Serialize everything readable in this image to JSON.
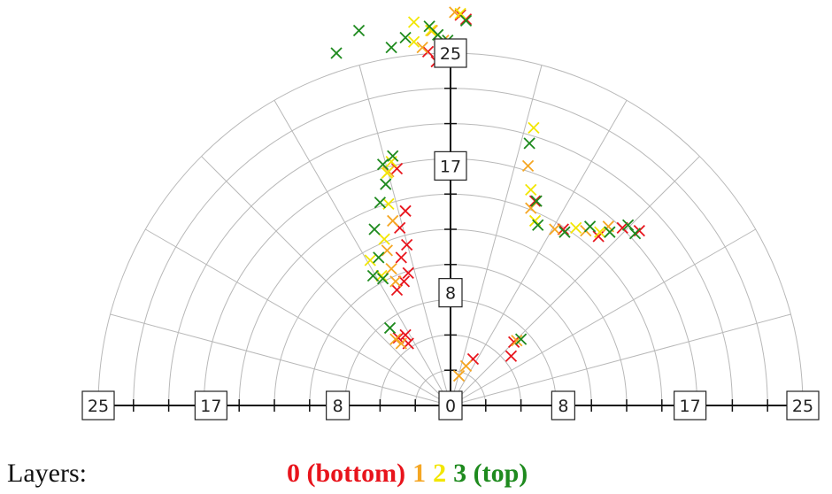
{
  "chart_data": {
    "type": "scatter",
    "coordinate_system": "polar-upper-half",
    "marker": "x",
    "radial_range": [
      0,
      25
    ],
    "radial_tick_labels": [
      "0",
      "8",
      "17",
      "25"
    ],
    "radial_ticks": [
      0,
      8,
      17,
      25
    ],
    "radial_minor_step": 2.5,
    "grid_rings": [
      2.5,
      5,
      7.5,
      10,
      12.5,
      15,
      17.5,
      20,
      22.5,
      25
    ],
    "grid_spokes_deg": [
      0,
      15,
      30,
      45,
      60,
      75,
      90,
      105,
      120,
      135,
      150,
      165,
      180
    ],
    "grid": true,
    "legend_placement": "bottom",
    "legend": {
      "title": "Layers:",
      "entries": [
        {
          "label": "0 (bottom)",
          "color": "#e8141c"
        },
        {
          "label": "1",
          "color": "#f5a623"
        },
        {
          "label": "2",
          "color": "#f2e600"
        },
        {
          "label": "3 (top)",
          "color": "#1e8a1e"
        }
      ]
    },
    "series": [
      {
        "layer": 0,
        "color": "#e8141c",
        "points": [
          [
            1.6,
            3.3
          ],
          [
            4.3,
            3.5
          ],
          [
            4.5,
            4.5
          ],
          [
            -3.7,
            4.8
          ],
          [
            -3.2,
            5.0
          ],
          [
            -3.0,
            4.4
          ],
          [
            -3.8,
            8.2
          ],
          [
            -3.3,
            8.8
          ],
          [
            -3.0,
            9.4
          ],
          [
            -3.5,
            10.5
          ],
          [
            -3.1,
            11.4
          ],
          [
            -3.6,
            12.6
          ],
          [
            -3.2,
            13.8
          ],
          [
            -3.8,
            16.8
          ],
          [
            -1.6,
            25.1
          ],
          [
            -1.0,
            24.4
          ],
          [
            0.7,
            27.7
          ],
          [
            1.1,
            27.4
          ],
          [
            6.0,
            14.5
          ],
          [
            8.0,
            12.5
          ],
          [
            10.5,
            12.0
          ],
          [
            12.2,
            12.6
          ],
          [
            13.4,
            12.4
          ]
        ]
      },
      {
        "layer": 1,
        "color": "#f5a623",
        "points": [
          [
            0.6,
            2.1
          ],
          [
            1.1,
            2.8
          ],
          [
            4.7,
            4.6
          ],
          [
            -3.9,
            4.7
          ],
          [
            -3.5,
            4.4
          ],
          [
            -3.9,
            8.8
          ],
          [
            -4.2,
            9.7
          ],
          [
            -4.5,
            11.0
          ],
          [
            -4.1,
            13.1
          ],
          [
            -4.4,
            16.6
          ],
          [
            -2.0,
            25.4
          ],
          [
            -1.3,
            26.6
          ],
          [
            -0.5,
            25.9
          ],
          [
            0.3,
            27.9
          ],
          [
            5.7,
            14.0
          ],
          [
            5.5,
            17.0
          ],
          [
            7.4,
            12.5
          ],
          [
            9.6,
            12.4
          ],
          [
            11.2,
            12.7
          ]
        ]
      },
      {
        "layer": 2,
        "color": "#f2e600",
        "points": [
          [
            -4.9,
            9.2
          ],
          [
            -5.7,
            10.3
          ],
          [
            -4.7,
            11.8
          ],
          [
            -4.4,
            14.3
          ],
          [
            -4.5,
            16.5
          ],
          [
            -4.2,
            17.3
          ],
          [
            -2.6,
            25.8
          ],
          [
            -1.4,
            26.6
          ],
          [
            -2.6,
            27.2
          ],
          [
            0.7,
            27.8
          ],
          [
            5.7,
            15.3
          ],
          [
            6.0,
            13.1
          ],
          [
            8.9,
            12.6
          ],
          [
            10.6,
            12.3
          ],
          [
            5.9,
            19.7
          ]
        ]
      },
      {
        "layer": 3,
        "color": "#1e8a1e",
        "points": [
          [
            5.0,
            4.7
          ],
          [
            -4.3,
            5.5
          ],
          [
            -5.5,
            9.2
          ],
          [
            -4.8,
            9.0
          ],
          [
            -5.1,
            10.5
          ],
          [
            -5.4,
            12.5
          ],
          [
            -5.0,
            14.4
          ],
          [
            -4.6,
            15.7
          ],
          [
            -4.8,
            17.1
          ],
          [
            -4.1,
            17.7
          ],
          [
            -8.1,
            25.0
          ],
          [
            -6.5,
            26.6
          ],
          [
            -4.2,
            25.4
          ],
          [
            -3.2,
            26.1
          ],
          [
            -1.5,
            26.9
          ],
          [
            -0.9,
            26.3
          ],
          [
            -0.2,
            25.9
          ],
          [
            1.1,
            27.3
          ],
          [
            6.1,
            14.5
          ],
          [
            5.6,
            18.6
          ],
          [
            6.2,
            12.8
          ],
          [
            8.1,
            12.3
          ],
          [
            9.9,
            12.7
          ],
          [
            11.3,
            12.3
          ],
          [
            12.6,
            12.8
          ],
          [
            13.1,
            12.2
          ]
        ]
      }
    ]
  }
}
